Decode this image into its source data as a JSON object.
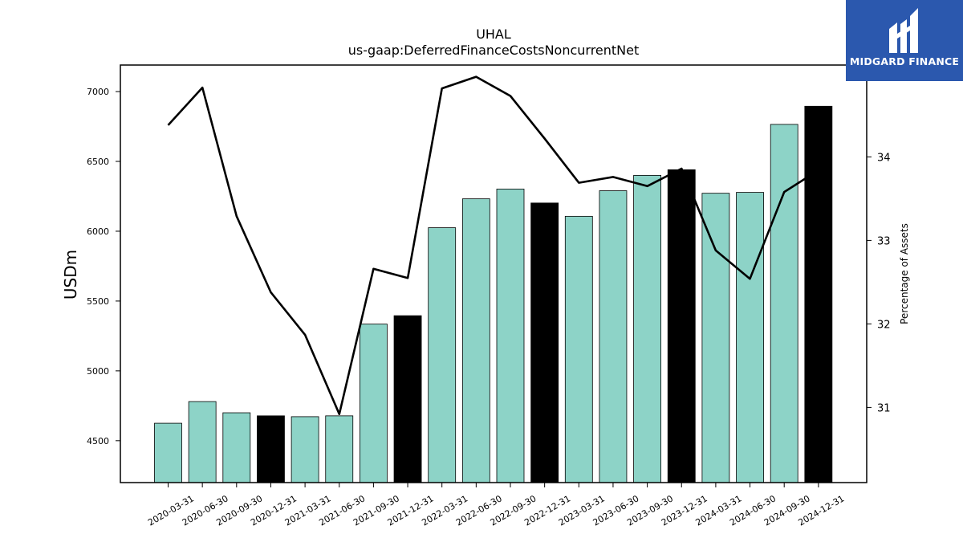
{
  "chart_data": {
    "type": "bar",
    "title": "UHAL",
    "subtitle": "us-gaap:DeferredFinanceCostsNoncurrentNet",
    "ylabel": "USDm",
    "y2label": "Percentage of Assets",
    "categories": [
      "2020-03-31",
      "2020-06-30",
      "2020-09-30",
      "2020-12-31",
      "2021-03-31",
      "2021-06-30",
      "2021-09-30",
      "2021-12-31",
      "2022-03-31",
      "2022-06-30",
      "2022-09-30",
      "2022-12-31",
      "2023-03-31",
      "2023-06-30",
      "2023-09-30",
      "2023-12-31",
      "2024-03-31",
      "2024-06-30",
      "2024-09-30",
      "2024-12-31"
    ],
    "series": [
      {
        "axis": "left",
        "type": "bar",
        "values": [
          4625,
          4780,
          4700,
          4678,
          4672,
          4678,
          5335,
          5395,
          6025,
          6232,
          6302,
          6202,
          6107,
          6290,
          6400,
          6440,
          6272,
          6278,
          6765,
          6895
        ]
      },
      {
        "axis": "right",
        "type": "line",
        "values": [
          34.38,
          34.83,
          33.29,
          32.38,
          31.87,
          30.92,
          32.66,
          32.55,
          34.82,
          34.96,
          34.73,
          34.22,
          33.69,
          33.76,
          33.65,
          33.86,
          32.88,
          32.54,
          33.58,
          33.84
        ]
      }
    ],
    "year_end_bar_color": "#000000",
    "bar_color": "#8dd3c7",
    "line_color": "#000000",
    "ylim": [
      4200,
      7190
    ],
    "yticks": [
      4500,
      5000,
      5500,
      6000,
      6500,
      7000
    ],
    "y2lim": [
      30.1,
      35.1
    ],
    "y2ticks": [
      31,
      32,
      33,
      34,
      35
    ],
    "grid": false,
    "legend": "none"
  },
  "logo": {
    "text": "MIDGARD FINANCE",
    "background": "#2b58ae"
  }
}
